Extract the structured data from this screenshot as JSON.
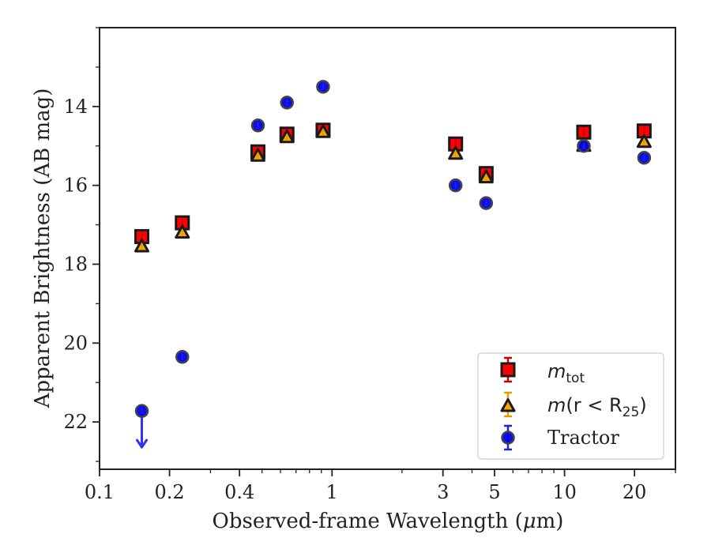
{
  "chart_data": {
    "type": "scatter",
    "xscale": "log",
    "xlim": [
      0.1,
      30
    ],
    "ylim": [
      23.2,
      12.0
    ],
    "y_inverted": true,
    "xlabel_pre": "Observed-frame Wavelength (",
    "xlabel_mu": "μ",
    "xlabel_post": "m)",
    "ylabel": "Apparent Brightness (AB mag)",
    "xticks": [
      {
        "value": 0.1,
        "label": "0.1"
      },
      {
        "value": 0.2,
        "label": "0.2"
      },
      {
        "value": 0.4,
        "label": "0.4"
      },
      {
        "value": 1,
        "label": "1"
      },
      {
        "value": 3,
        "label": "3"
      },
      {
        "value": 5,
        "label": "5"
      },
      {
        "value": 10,
        "label": "10"
      },
      {
        "value": 20,
        "label": "20"
      }
    ],
    "yticks": [
      {
        "value": 14,
        "label": "14"
      },
      {
        "value": 16,
        "label": "16"
      },
      {
        "value": 18,
        "label": "18"
      },
      {
        "value": 20,
        "label": "20"
      },
      {
        "value": 22,
        "label": "22"
      }
    ],
    "legend_position": "lower-right",
    "series": [
      {
        "name_base": "m",
        "name_sub": "tot",
        "marker": "square",
        "color": "#ff0000",
        "edgecolor": "#1a1a1a",
        "errcolor": "#cc0000",
        "x": [
          0.152,
          0.227,
          0.48,
          0.64,
          0.915,
          3.4,
          4.6,
          12.1,
          22.0
        ],
        "y": [
          17.3,
          16.95,
          15.15,
          14.7,
          14.6,
          14.95,
          15.7,
          14.65,
          14.62
        ]
      },
      {
        "name_base": "m",
        "name_sub": "25",
        "name_middle": "(r < R",
        "name_end": ")",
        "marker": "triangle",
        "color": "#ffa500",
        "edgecolor": "#1a1a1a",
        "errcolor": "#e0a000",
        "x": [
          0.152,
          0.227,
          0.48,
          0.64,
          0.915,
          3.4,
          4.6,
          12.1,
          22.0
        ],
        "y": [
          17.55,
          17.2,
          15.25,
          14.78,
          14.65,
          15.2,
          15.8,
          15.0,
          14.9
        ]
      },
      {
        "name": "Tractor",
        "marker": "circle",
        "color": "#0000ee",
        "edgecolor": "#444444",
        "errcolor": "#2222dd",
        "x": [
          0.152,
          0.227,
          0.48,
          0.64,
          0.915,
          3.4,
          4.6,
          12.1,
          22.0
        ],
        "y": [
          21.72,
          20.35,
          14.48,
          13.9,
          13.5,
          16.0,
          16.45,
          15.0,
          15.3
        ],
        "upper_limit_index": 0
      }
    ]
  }
}
